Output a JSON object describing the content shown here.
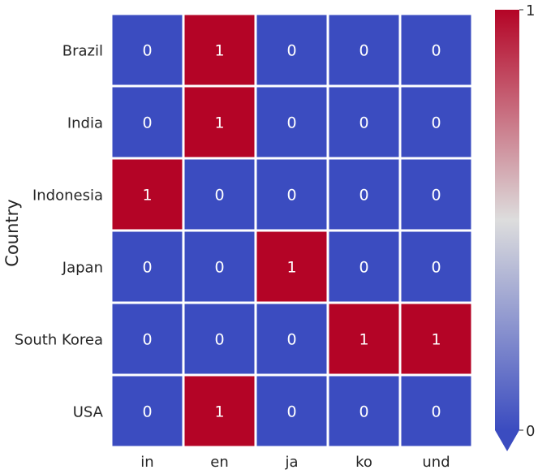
{
  "chart_data": {
    "type": "heatmap",
    "title": "",
    "xlabel": "",
    "ylabel": "Country",
    "x_categories": [
      "in",
      "en",
      "ja",
      "ko",
      "und"
    ],
    "y_categories": [
      "Brazil",
      "India",
      "Indonesia",
      "Japan",
      "South Korea",
      "USA"
    ],
    "values": [
      [
        0,
        1,
        0,
        0,
        0
      ],
      [
        0,
        1,
        0,
        0,
        0
      ],
      [
        1,
        0,
        0,
        0,
        0
      ],
      [
        0,
        0,
        1,
        0,
        0
      ],
      [
        0,
        0,
        0,
        1,
        1
      ],
      [
        0,
        1,
        0,
        0,
        0
      ]
    ],
    "colormap": "coolwarm",
    "low_color": "#3b4cc0",
    "high_color": "#b40426",
    "colorbar": {
      "min_label": "0",
      "max_label": "1",
      "extend": "min"
    },
    "annotations": true
  }
}
